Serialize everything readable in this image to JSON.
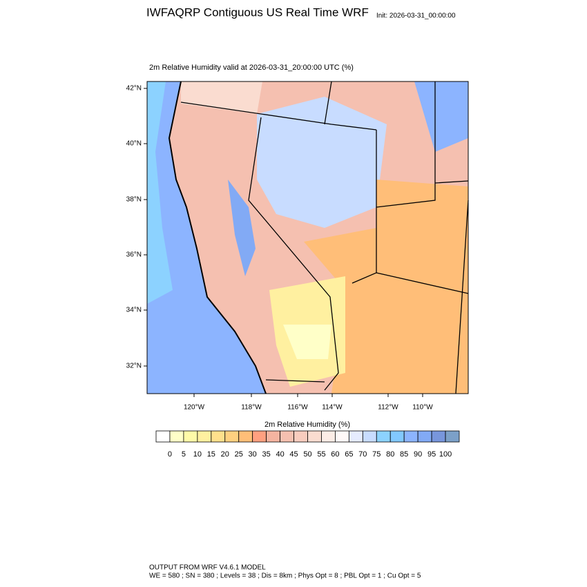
{
  "header": {
    "title": "IWFAQRP Contiguous US Real Time WRF",
    "init": "Init: 2026-03-31_00:00:00"
  },
  "map": {
    "subtitle": "2m Relative Humidity valid at 2026-03-31_20:00:00 UTC   (%)",
    "lat_labels": [
      "42°N",
      "40°N",
      "38°N",
      "36°N",
      "34°N",
      "32°N"
    ],
    "lon_labels": [
      "120°W",
      "118°W",
      "116°W",
      "114°W",
      "112°W",
      "110°W"
    ]
  },
  "colorbar": {
    "title": "2m Relative Humidity  (%)",
    "levels": [
      0,
      5,
      10,
      15,
      20,
      25,
      30,
      35,
      40,
      45,
      50,
      55,
      60,
      65,
      70,
      75,
      80,
      85,
      90,
      95,
      100
    ],
    "colors": [
      "#ffffff",
      "#ffffc8",
      "#fffaa8",
      "#fff0a0",
      "#ffe08c",
      "#ffd080",
      "#ffbe78",
      "#ffa080",
      "#f5b4a0",
      "#f5c0b0",
      "#f8ccbe",
      "#fadcd0",
      "#fdece6",
      "#fff8f8",
      "#e6ecff",
      "#c8dcff",
      "#8cd2ff",
      "#82c8ff",
      "#8cb4ff",
      "#82aaf5",
      "#7896dc",
      "#7ca0c8"
    ]
  },
  "footer": {
    "line1": "OUTPUT FROM WRF V4.6.1 MODEL",
    "line2": "WE = 580 ; SN = 380 ; Levels = 38 ; Dis = 8km ; Phys Opt = 8 ; PBL Opt = 1 ; Cu Opt = 5"
  }
}
